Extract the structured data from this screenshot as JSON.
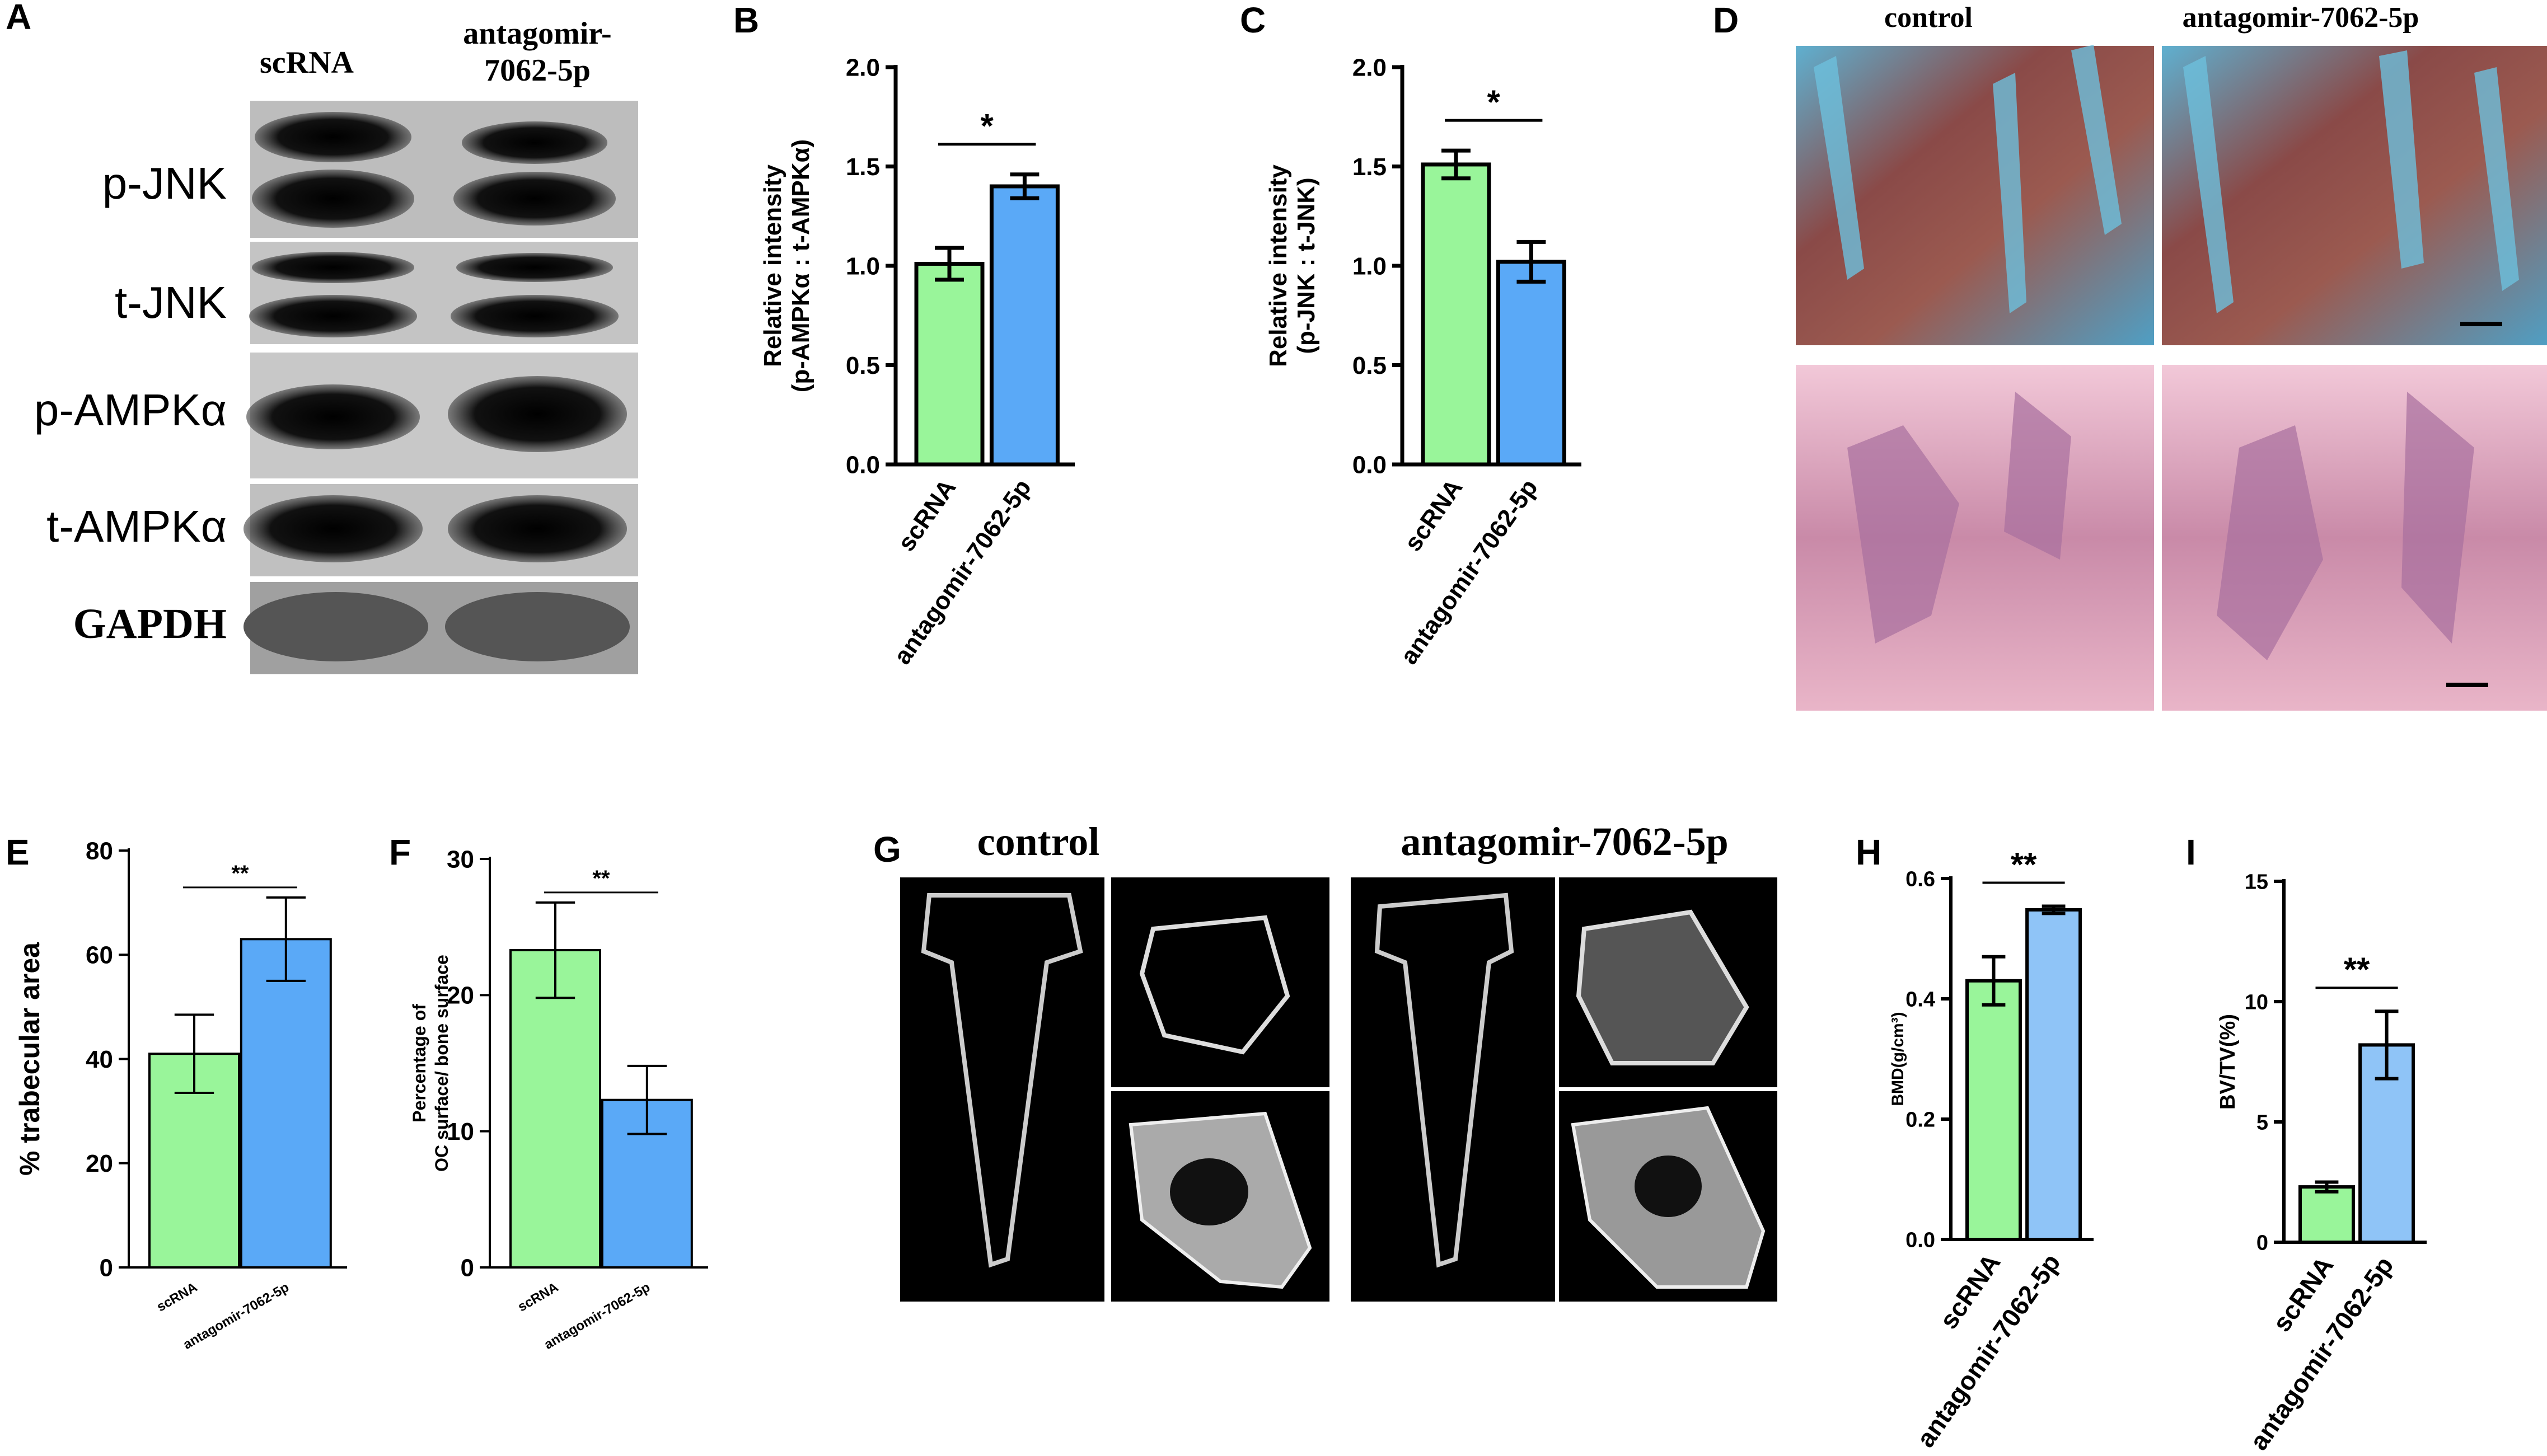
{
  "panels": {
    "A": {
      "letter": "A",
      "lanes": [
        "scRNA",
        "antagomir-\n7062-5p"
      ],
      "lane1": "scRNA",
      "lane2_line1": "antagomir-",
      "lane2_line2": "7062-5p",
      "blots": [
        "p-JNK",
        "t-JNK",
        "p-AMPKα",
        "t-AMPKα",
        "GAPDH"
      ]
    },
    "D": {
      "letter": "D",
      "col1": "control",
      "col2": "antagomir-7062-5p"
    },
    "G": {
      "letter": "G",
      "col1": "control",
      "col2": "antagomir-7062-5p"
    }
  },
  "colors": {
    "green": "#99f59a",
    "blue": "#5aa9f7",
    "light_blue": "#8fc4f7",
    "stain_blue": "#4fa4c8",
    "stain_red": "#a0494a",
    "stain_pink": "#e07aa6"
  },
  "chart_data": [
    {
      "id": "B",
      "letter": "B",
      "type": "bar",
      "categories": [
        "scRNA",
        "antagomir-7062-5p"
      ],
      "values": [
        1.01,
        1.4
      ],
      "errors": [
        0.08,
        0.06
      ],
      "ylabel_line1": "Relative intensity",
      "ylabel_line2": "(p-AMPKα : t-AMPKα)",
      "ylim": [
        0,
        2.0
      ],
      "yticks": [
        "0.0",
        "0.5",
        "1.0",
        "1.5",
        "2.0"
      ],
      "significance": "*"
    },
    {
      "id": "C",
      "letter": "C",
      "type": "bar",
      "categories": [
        "scRNA",
        "antagomir-7062-5p"
      ],
      "values": [
        1.51,
        1.02
      ],
      "errors": [
        0.07,
        0.1
      ],
      "ylabel_line1": "Relative intensity",
      "ylabel_line2": "(p-JNK : t-JNK)",
      "ylim": [
        0,
        2.0
      ],
      "yticks": [
        "0.0",
        "0.5",
        "1.0",
        "1.5",
        "2.0"
      ],
      "significance": "*"
    },
    {
      "id": "E",
      "letter": "E",
      "type": "bar",
      "categories": [
        "scRNA",
        "antagomir-7062-5p"
      ],
      "values": [
        41,
        63
      ],
      "errors": [
        7.5,
        8
      ],
      "ylabel_line1": "% trabecular area",
      "ylabel_line2": "",
      "ylim": [
        0,
        80
      ],
      "yticks": [
        "0",
        "20",
        "40",
        "60",
        "80"
      ],
      "significance": "**"
    },
    {
      "id": "F",
      "letter": "F",
      "type": "bar",
      "categories": [
        "scRNA",
        "antagomir-7062-5p"
      ],
      "values": [
        23.3,
        12.3
      ],
      "errors": [
        3.5,
        2.5
      ],
      "ylabel_line1": "Percentage of",
      "ylabel_line2": "OC surface/ bone surface",
      "ylim": [
        0,
        30
      ],
      "yticks": [
        "0",
        "10",
        "20",
        "30"
      ],
      "significance": "**"
    },
    {
      "id": "H",
      "letter": "H",
      "type": "bar",
      "categories": [
        "scRNA",
        "antagomir-7062-5p"
      ],
      "values": [
        0.43,
        0.548
      ],
      "errors": [
        0.04,
        0.006
      ],
      "ylabel_line1": "BMD(g/cm³)",
      "ylabel_line2": "",
      "ylim": [
        0,
        0.6
      ],
      "yticks": [
        "0.0",
        "0.2",
        "0.4",
        "0.6"
      ],
      "significance": "**"
    },
    {
      "id": "I",
      "letter": "I",
      "type": "bar",
      "categories": [
        "scRNA",
        "antagomir-7062-5p"
      ],
      "values": [
        2.3,
        8.2
      ],
      "errors": [
        0.2,
        1.4
      ],
      "ylabel_line1": "BV/TV(%)",
      "ylabel_line2": "",
      "ylim": [
        0,
        15
      ],
      "yticks": [
        "0",
        "5",
        "10",
        "15"
      ],
      "significance": "**"
    }
  ]
}
